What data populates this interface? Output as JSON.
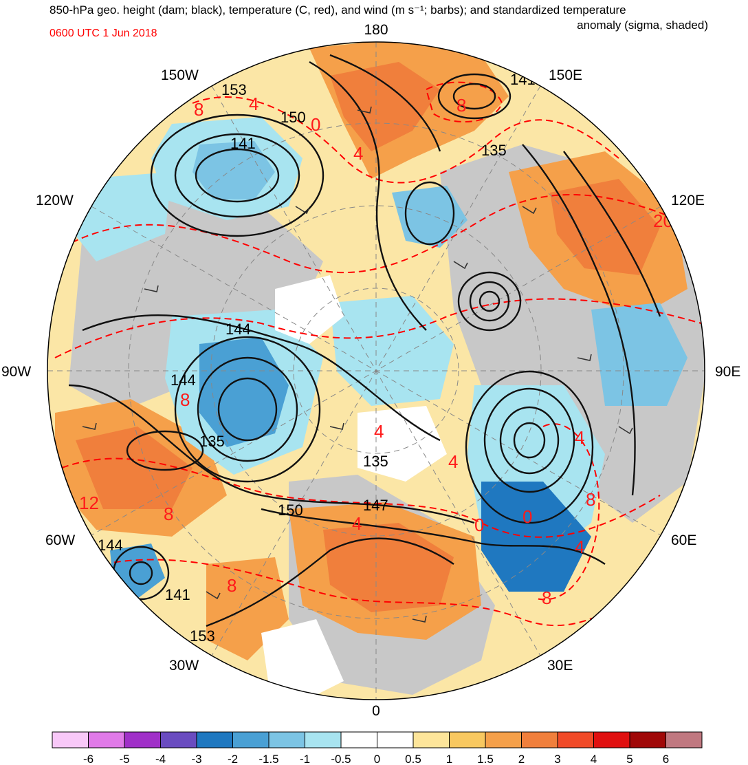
{
  "header": {
    "title_line1": "850-hPa geo. height (dam; black), temperature (C, red), and wind (m s⁻¹; barbs); and standardized temperature",
    "title_line2": "anomaly (sigma, shaded)",
    "valid_time": "0600 UTC 1 Jun 2018"
  },
  "colors": {
    "height_contours": "#000000",
    "temperature_contours": "#ff0000",
    "land_shading": "#c8c8c8"
  },
  "map": {
    "projection": "north polar stereographic",
    "longitude_labels": {
      "lon_180": "180",
      "lon_150e": "150E",
      "lon_120e": "120E",
      "lon_90e": "90E",
      "lon_60e": "60E",
      "lon_30e": "30E",
      "lon_0": "0",
      "lon_30w": "30W",
      "lon_60w": "60W",
      "lon_90w": "90W",
      "lon_120w": "120W",
      "lon_150w": "150W"
    },
    "height_labels": [
      "153",
      "150",
      "141",
      "135",
      "141",
      "144",
      "144",
      "135",
      "135",
      "150",
      "147",
      "144",
      "141",
      "153"
    ],
    "temperature_labels": [
      "8",
      "4",
      "0",
      "4",
      "8",
      "20",
      "8",
      "4",
      "4",
      "4",
      "0",
      "8",
      "12",
      "8",
      "8",
      "4",
      "8",
      "4",
      "0"
    ]
  },
  "colorbar": {
    "colors": [
      "#f8c8f8",
      "#e07ae8",
      "#a030c8",
      "#6a4cc0",
      "#1f78c0",
      "#4aa0d4",
      "#7cc4e4",
      "#a8e4f0",
      "#ffffff",
      "#ffffff",
      "#fde59a",
      "#f8c860",
      "#f5a04a",
      "#f07f3c",
      "#f04a28",
      "#e01010",
      "#a00808",
      "#c07880"
    ],
    "ticks": [
      "-6",
      "-5",
      "-4",
      "-3",
      "-2",
      "-1.5",
      "-1",
      "-0.5",
      "0",
      "0.5",
      "1",
      "1.5",
      "2",
      "3",
      "4",
      "5",
      "6"
    ]
  }
}
